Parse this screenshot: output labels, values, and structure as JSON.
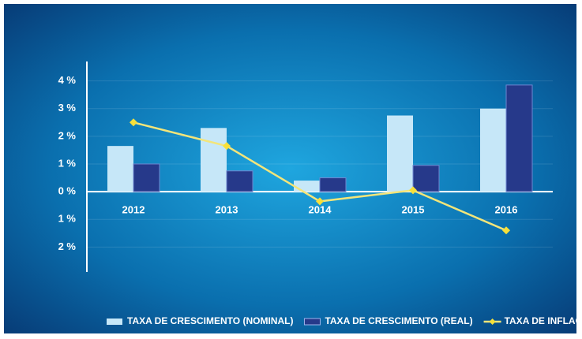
{
  "chart_data": {
    "type": "bar-line",
    "categories": [
      "2012",
      "2013",
      "2014",
      "2015",
      "2016"
    ],
    "series": [
      {
        "name": "TAXA DE CRESCIMENTO (NOMINAL)",
        "type": "bar",
        "color": "#c6e7f8",
        "values": [
          1.65,
          2.3,
          0.4,
          2.75,
          3.0
        ]
      },
      {
        "name": "TAXA DE CRESCIMENTO (REAL)",
        "type": "bar",
        "color": "#26398a",
        "values": [
          1.0,
          0.75,
          0.5,
          0.95,
          3.85
        ]
      },
      {
        "name": "TAXA DE INFLAÇÃO",
        "type": "line",
        "color": "#f3e57a",
        "values": [
          2.5,
          1.65,
          -0.35,
          0.05,
          -1.4
        ]
      }
    ],
    "ylim": [
      -2.9,
      4.7
    ],
    "yticks": [
      {
        "value": 4,
        "label": "4 %"
      },
      {
        "value": 3,
        "label": "3 %"
      },
      {
        "value": 2,
        "label": "2 %"
      },
      {
        "value": 1,
        "label": "1 %"
      },
      {
        "value": 0,
        "label": "0 %"
      },
      {
        "value": -1,
        "label": "1 %"
      },
      {
        "value": -2,
        "label": "2 %"
      }
    ],
    "grid": true
  }
}
